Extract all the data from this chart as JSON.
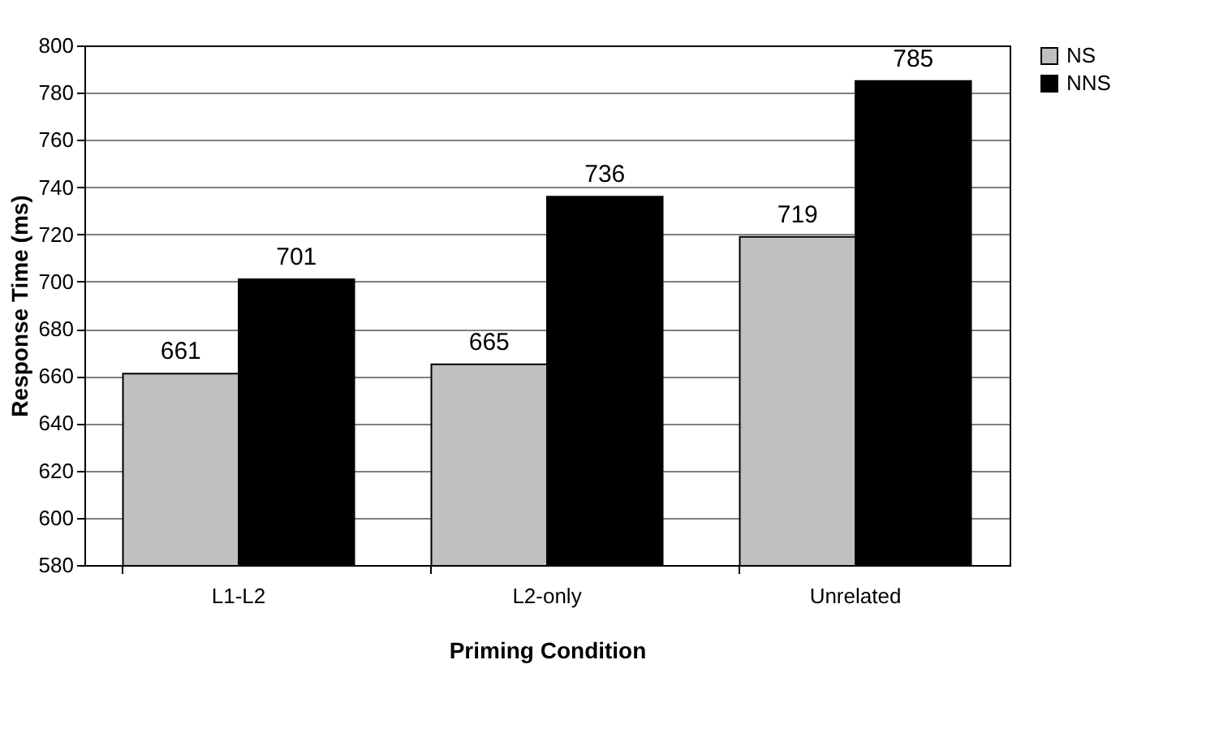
{
  "chart_data": {
    "type": "bar",
    "xlabel": "Priming Condition",
    "ylabel": "Response Time (ms)",
    "categories": [
      "L1-L2",
      "L2-only",
      "Unrelated"
    ],
    "series": [
      {
        "name": "NS",
        "color": "#c0c0c0",
        "values": [
          661,
          665,
          719
        ]
      },
      {
        "name": "NNS",
        "color": "#000000",
        "values": [
          701,
          736,
          785
        ]
      }
    ],
    "ylim": [
      580,
      800
    ],
    "yticks": [
      580,
      600,
      620,
      640,
      660,
      680,
      700,
      720,
      740,
      760,
      780,
      800
    ],
    "grid": "y",
    "legend": "right",
    "data_labels": true
  }
}
